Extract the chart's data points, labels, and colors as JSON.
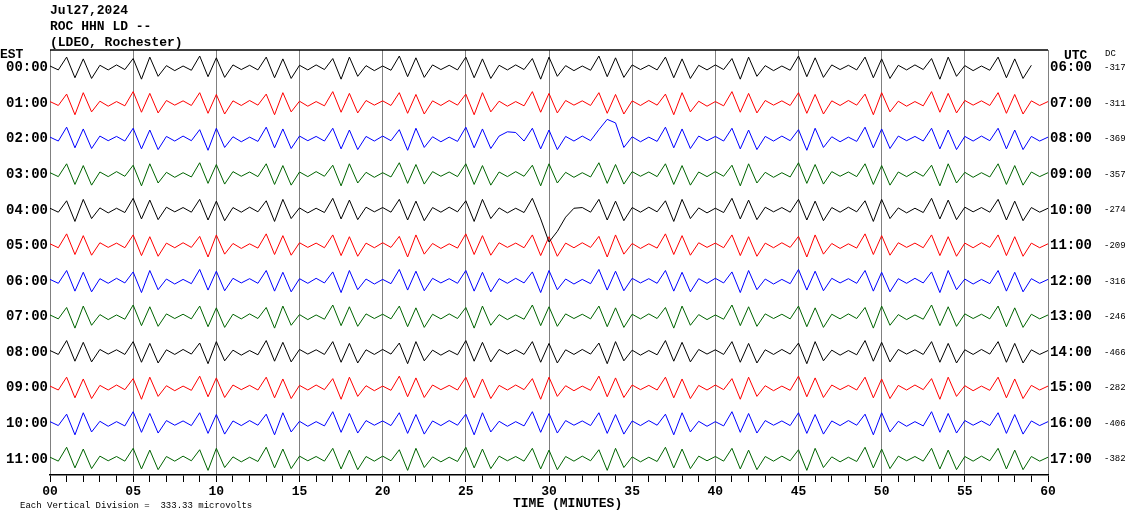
{
  "chart_data": {
    "type": "line",
    "title": "Jul27,2024",
    "subtitle": "ROC HHN LD --",
    "annotations": [
      "(LDEO, Rochester)",
      "Each Vertical Division =  333.33 microvolts",
      "DC",
      "-317",
      "-311",
      "-369",
      "-357",
      "-274",
      "-209",
      "-316",
      "-246",
      "-466",
      "-282",
      "-406",
      "-382"
    ],
    "xlabel": "TIME (MINUTES)",
    "ylabel": "EST",
    "y2label": "UTC",
    "xlim": [
      0,
      60
    ],
    "xticks": [
      {
        "value": 0,
        "label": "00"
      },
      {
        "value": 1,
        "label": null
      },
      {
        "value": 2,
        "label": null
      },
      {
        "value": 3,
        "label": null
      },
      {
        "value": 4,
        "label": null
      },
      {
        "value": 5,
        "label": "05"
      },
      {
        "value": 6,
        "label": null
      },
      {
        "value": 7,
        "label": null
      },
      {
        "value": 8,
        "label": null
      },
      {
        "value": 9,
        "label": null
      },
      {
        "value": 10,
        "label": "10"
      },
      {
        "value": 11,
        "label": null
      },
      {
        "value": 12,
        "label": null
      },
      {
        "value": 13,
        "label": null
      },
      {
        "value": 14,
        "label": null
      },
      {
        "value": 15,
        "label": "15"
      },
      {
        "value": 16,
        "label": null
      },
      {
        "value": 17,
        "label": null
      },
      {
        "value": 18,
        "label": null
      },
      {
        "value": 19,
        "label": null
      },
      {
        "value": 20,
        "label": "20"
      },
      {
        "value": 21,
        "label": null
      },
      {
        "value": 22,
        "label": null
      },
      {
        "value": 23,
        "label": null
      },
      {
        "value": 24,
        "label": null
      },
      {
        "value": 25,
        "label": "25"
      },
      {
        "value": 26,
        "label": null
      },
      {
        "value": 27,
        "label": null
      },
      {
        "value": 28,
        "label": null
      },
      {
        "value": 29,
        "label": null
      },
      {
        "value": 30,
        "label": "30"
      },
      {
        "value": 31,
        "label": null
      },
      {
        "value": 32,
        "label": null
      },
      {
        "value": 33,
        "label": null
      },
      {
        "value": 34,
        "label": null
      },
      {
        "value": 35,
        "label": "35"
      },
      {
        "value": 36,
        "label": null
      },
      {
        "value": 37,
        "label": null
      },
      {
        "value": 38,
        "label": null
      },
      {
        "value": 39,
        "label": null
      },
      {
        "value": 40,
        "label": "40"
      },
      {
        "value": 41,
        "label": null
      },
      {
        "value": 42,
        "label": null
      },
      {
        "value": 43,
        "label": null
      },
      {
        "value": 44,
        "label": null
      },
      {
        "value": 45,
        "label": "45"
      },
      {
        "value": 46,
        "label": null
      },
      {
        "value": 47,
        "label": null
      },
      {
        "value": 48,
        "label": null
      },
      {
        "value": 49,
        "label": null
      },
      {
        "value": 50,
        "label": "50"
      },
      {
        "value": 51,
        "label": null
      },
      {
        "value": 52,
        "label": null
      },
      {
        "value": 53,
        "label": null
      },
      {
        "value": 54,
        "label": null
      },
      {
        "value": 55,
        "label": "55"
      },
      {
        "value": 56,
        "label": null
      },
      {
        "value": 57,
        "label": null
      },
      {
        "value": 58,
        "label": null
      },
      {
        "value": 59,
        "label": null
      },
      {
        "value": 60,
        "label": "60"
      }
    ],
    "ylim": [
      11.45,
      -0.5
    ],
    "yticks": [
      {
        "value": 0,
        "label": "00:00"
      },
      {
        "value": 1,
        "label": "01:00"
      },
      {
        "value": 2,
        "label": "02:00"
      },
      {
        "value": 3,
        "label": "03:00"
      },
      {
        "value": 4,
        "label": "04:00"
      },
      {
        "value": 5,
        "label": "05:00"
      },
      {
        "value": 6,
        "label": "06:00"
      },
      {
        "value": 7,
        "label": "07:00"
      },
      {
        "value": 8,
        "label": "08:00"
      },
      {
        "value": 9,
        "label": "09:00"
      },
      {
        "value": 10,
        "label": "10:00"
      },
      {
        "value": 11,
        "label": "11:00"
      }
    ],
    "y2lim": [
      17.45,
      5.5
    ],
    "y2ticks": [
      {
        "value": 6,
        "label": "06:00"
      },
      {
        "value": 7,
        "label": "07:00"
      },
      {
        "value": 8,
        "label": "08:00"
      },
      {
        "value": 9,
        "label": "09:00"
      },
      {
        "value": 10,
        "label": "10:00"
      },
      {
        "value": 11,
        "label": "11:00"
      },
      {
        "value": 12,
        "label": "12:00"
      },
      {
        "value": 13,
        "label": "13:00"
      },
      {
        "value": 14,
        "label": "14:00"
      },
      {
        "value": 15,
        "label": "15:00"
      },
      {
        "value": 16,
        "label": "16:00"
      },
      {
        "value": 17,
        "label": "17:00"
      }
    ],
    "grid": "x",
    "marker": "none",
    "line_style": "solid",
    "x": [
      0,
      0.5,
      1,
      1.5,
      2,
      2.5,
      3,
      3.5,
      4,
      4.5,
      5,
      5.5,
      6,
      6.5,
      7,
      7.5,
      8,
      8.5,
      9,
      9.5,
      10,
      10.5,
      11,
      11.5,
      12,
      12.5,
      13,
      13.5,
      14,
      14.5,
      15,
      15.5,
      16,
      16.5,
      17,
      17.5,
      18,
      18.5,
      19,
      19.5,
      20,
      20.5,
      21,
      21.5,
      22,
      22.5,
      23,
      23.5,
      24,
      24.5,
      25,
      25.5,
      26,
      26.5,
      27,
      27.5,
      28,
      28.5,
      29,
      29.5,
      30,
      30.5,
      31,
      31.5,
      32,
      32.5,
      33,
      33.5,
      34,
      34.5,
      35,
      35.5,
      36,
      36.5,
      37,
      37.5,
      38,
      38.5,
      39,
      39.5,
      40,
      40.5,
      41,
      41.5,
      42,
      42.5,
      43,
      43.5,
      44,
      44.5,
      45,
      45.5,
      46,
      46.5,
      47,
      47.5,
      48,
      48.5,
      49,
      49.5,
      50,
      50.5,
      51,
      51.5,
      52,
      52.5,
      53,
      53.5,
      54,
      54.5,
      55,
      55.5,
      56,
      56.5,
      57,
      57.5,
      58,
      58.5,
      59,
      59.5,
      60
    ],
    "series": [
      {
        "color": "#000000",
        "values": [
          -0.05,
          0.06,
          -0.3,
          0.28,
          -0.25,
          0.3,
          -0.07,
          0.06,
          -0.08,
          0.05,
          -0.26,
          0.32,
          -0.3,
          0.24,
          -0.06,
          0.08,
          -0.05,
          0.07,
          -0.33,
          0.25,
          -0.28,
          0.27,
          -0.08,
          0.05,
          -0.07,
          0.06,
          -0.3,
          0.28,
          -0.25,
          0.3,
          -0.07,
          0.06,
          -0.08,
          0.05,
          -0.26,
          0.32,
          -0.3,
          0.24,
          -0.06,
          0.08,
          -0.05,
          0.07,
          -0.33,
          0.25,
          -0.28,
          0.27,
          -0.08,
          0.05,
          -0.07,
          0.06,
          -0.3,
          0.28,
          -0.25,
          0.3,
          -0.07,
          0.06,
          -0.08,
          0.05,
          -0.26,
          0.32,
          -0.3,
          0.24,
          -0.06,
          0.08,
          -0.05,
          0.07,
          -0.33,
          0.25,
          -0.28,
          0.27,
          -0.08,
          0.05,
          -0.07,
          0.06,
          -0.3,
          0.28,
          -0.25,
          0.3,
          -0.07,
          0.06,
          -0.08,
          0.05,
          -0.26,
          0.32,
          -0.3,
          0.24,
          -0.06,
          0.08,
          -0.05,
          0.07,
          -0.33,
          0.25,
          -0.28,
          0.27,
          -0.08,
          0.05,
          -0.07,
          0.06,
          -0.3,
          0.28,
          -0.25,
          0.3,
          -0.07,
          0.06,
          -0.08,
          0.05,
          -0.26,
          0.32,
          -0.3,
          0.24,
          -0.06,
          0.08,
          -0.05,
          0.07,
          -0.3,
          0.28,
          -0.25,
          0.3,
          -0.07,
          null,
          null
        ]
      },
      {
        "color": "#ff0000",
        "values": [
          0.95,
          1.06,
          0.74,
          1.32,
          0.7,
          1.24,
          0.94,
          1.08,
          0.95,
          1.07,
          0.67,
          1.25,
          0.72,
          1.27,
          0.92,
          1.05,
          0.93,
          1.06,
          0.7,
          1.28,
          0.75,
          1.3,
          0.93,
          1.06,
          0.92,
          1.05,
          0.74,
          1.32,
          0.7,
          1.24,
          0.94,
          1.08,
          0.95,
          1.07,
          0.67,
          1.25,
          0.72,
          1.27,
          0.92,
          1.05,
          0.93,
          1.06,
          0.7,
          1.28,
          0.75,
          1.3,
          0.93,
          1.06,
          0.92,
          1.05,
          0.74,
          1.32,
          0.7,
          1.24,
          0.94,
          1.08,
          0.95,
          1.07,
          0.67,
          1.25,
          0.72,
          1.27,
          0.92,
          1.05,
          0.93,
          1.06,
          0.7,
          1.28,
          0.75,
          1.3,
          0.93,
          1.06,
          0.92,
          1.05,
          0.74,
          1.32,
          0.7,
          1.24,
          0.94,
          1.08,
          0.95,
          1.07,
          0.67,
          1.25,
          0.72,
          1.27,
          0.92,
          1.05,
          0.93,
          1.06,
          0.7,
          1.28,
          0.75,
          1.3,
          0.93,
          1.06,
          0.92,
          1.05,
          0.74,
          1.32,
          0.7,
          1.24,
          0.94,
          1.08,
          0.95,
          1.07,
          0.67,
          1.25,
          0.72,
          1.27,
          0.92,
          1.05,
          0.93,
          1.06,
          0.7,
          1.28,
          0.75,
          1.3,
          0.93,
          1.06,
          0.95
        ]
      },
      {
        "color": "#0000ff",
        "values": [
          1.95,
          2.06,
          1.67,
          2.25,
          1.72,
          2.27,
          1.92,
          2.05,
          1.93,
          2.06,
          1.7,
          2.28,
          1.75,
          2.3,
          1.93,
          2.06,
          1.92,
          2.05,
          1.74,
          2.32,
          1.7,
          2.24,
          1.94,
          2.08,
          1.95,
          2.07,
          1.67,
          2.25,
          1.72,
          2.27,
          1.92,
          2.05,
          1.93,
          2.06,
          1.7,
          2.28,
          1.75,
          2.3,
          1.93,
          2.06,
          1.92,
          2.05,
          1.74,
          2.32,
          1.7,
          2.24,
          1.94,
          2.08,
          1.95,
          2.07,
          1.67,
          2.25,
          1.72,
          2.27,
          1.92,
          1.8,
          1.82,
          2.06,
          1.7,
          2.28,
          1.75,
          2.3,
          1.93,
          2.06,
          1.92,
          2.05,
          1.74,
          1.45,
          1.55,
          2.24,
          1.94,
          2.08,
          1.95,
          2.07,
          1.67,
          2.25,
          1.72,
          2.27,
          1.92,
          2.05,
          1.93,
          2.06,
          1.7,
          2.28,
          1.75,
          2.3,
          1.93,
          2.06,
          1.92,
          2.05,
          1.74,
          2.32,
          1.7,
          2.24,
          1.94,
          2.08,
          1.95,
          2.07,
          1.67,
          2.25,
          1.72,
          2.27,
          1.92,
          2.05,
          1.93,
          2.06,
          1.7,
          2.28,
          1.75,
          2.3,
          1.93,
          2.06,
          1.92,
          2.05,
          1.7,
          2.28,
          1.75,
          2.3,
          1.93,
          2.06,
          1.95
        ]
      },
      {
        "color": "#006400",
        "values": [
          2.95,
          3.06,
          2.7,
          3.28,
          2.75,
          3.3,
          2.93,
          3.06,
          2.92,
          3.05,
          2.74,
          3.32,
          2.7,
          3.24,
          2.94,
          3.08,
          2.95,
          3.07,
          2.67,
          3.25,
          2.72,
          3.27,
          2.92,
          3.05,
          2.93,
          3.06,
          2.7,
          3.28,
          2.75,
          3.3,
          2.93,
          3.06,
          2.92,
          3.05,
          2.74,
          3.32,
          2.7,
          3.24,
          2.94,
          3.08,
          2.95,
          3.07,
          2.67,
          3.25,
          2.72,
          3.27,
          2.92,
          3.05,
          2.93,
          3.06,
          2.7,
          3.28,
          2.75,
          3.3,
          2.93,
          3.06,
          2.92,
          3.05,
          2.74,
          3.32,
          2.7,
          3.24,
          2.94,
          3.08,
          2.95,
          3.07,
          2.67,
          3.25,
          2.72,
          3.27,
          2.92,
          3.05,
          2.93,
          3.06,
          2.7,
          3.28,
          2.75,
          3.3,
          2.93,
          3.06,
          2.92,
          3.05,
          2.74,
          3.32,
          2.7,
          3.24,
          2.94,
          3.08,
          2.95,
          3.07,
          2.67,
          3.25,
          2.72,
          3.27,
          2.92,
          3.05,
          2.93,
          3.06,
          2.7,
          3.28,
          2.75,
          3.3,
          2.93,
          3.06,
          2.92,
          3.05,
          2.74,
          3.32,
          2.7,
          3.24,
          2.94,
          3.08,
          2.95,
          3.07,
          2.7,
          3.28,
          2.75,
          3.3,
          2.93,
          3.06,
          2.95
        ]
      },
      {
        "color": "#000000",
        "values": [
          3.95,
          4.06,
          3.74,
          4.32,
          3.7,
          4.24,
          3.94,
          4.08,
          3.95,
          4.07,
          3.67,
          4.25,
          3.72,
          4.27,
          3.92,
          4.05,
          3.93,
          4.06,
          3.7,
          4.28,
          3.75,
          4.3,
          3.93,
          4.06,
          3.92,
          4.05,
          3.74,
          4.32,
          3.7,
          4.24,
          3.94,
          4.08,
          3.95,
          4.07,
          3.67,
          4.25,
          3.72,
          4.27,
          3.92,
          4.05,
          3.93,
          4.06,
          3.7,
          4.28,
          3.75,
          4.3,
          3.93,
          4.06,
          3.92,
          4.05,
          3.74,
          4.32,
          3.7,
          4.24,
          3.94,
          4.08,
          3.95,
          4.07,
          3.67,
          4.25,
          4.9,
          4.6,
          4.2,
          3.95,
          3.93,
          4.06,
          3.7,
          4.28,
          3.75,
          4.3,
          3.93,
          4.06,
          3.92,
          4.05,
          3.74,
          4.32,
          3.7,
          4.24,
          3.94,
          4.08,
          3.95,
          4.07,
          3.67,
          4.25,
          3.72,
          4.27,
          3.92,
          4.05,
          3.93,
          4.06,
          3.7,
          4.28,
          3.75,
          4.3,
          3.93,
          4.06,
          3.92,
          4.05,
          3.74,
          4.32,
          3.7,
          4.24,
          3.94,
          4.08,
          3.95,
          4.07,
          3.67,
          4.25,
          3.72,
          4.27,
          3.92,
          4.05,
          3.93,
          4.06,
          3.7,
          4.28,
          3.75,
          4.3,
          3.93,
          4.06,
          3.95
        ]
      },
      {
        "color": "#ff0000",
        "values": [
          4.95,
          5.06,
          4.67,
          5.25,
          4.72,
          5.27,
          4.92,
          5.05,
          4.93,
          5.06,
          4.7,
          5.28,
          4.75,
          5.3,
          4.93,
          5.06,
          4.92,
          5.05,
          4.74,
          5.32,
          4.7,
          5.24,
          4.94,
          5.08,
          4.95,
          5.07,
          4.67,
          5.25,
          4.72,
          5.27,
          4.92,
          5.05,
          4.93,
          5.06,
          4.7,
          5.28,
          4.75,
          5.3,
          4.93,
          5.06,
          4.92,
          5.05,
          4.74,
          5.32,
          4.7,
          5.24,
          4.94,
          5.08,
          4.95,
          5.07,
          4.67,
          5.25,
          4.72,
          5.27,
          4.92,
          5.05,
          4.93,
          5.06,
          4.7,
          5.28,
          4.75,
          5.3,
          4.93,
          5.06,
          4.92,
          5.05,
          4.74,
          5.32,
          4.7,
          5.24,
          4.94,
          5.08,
          4.95,
          5.07,
          4.67,
          5.25,
          4.72,
          5.27,
          4.92,
          5.05,
          4.93,
          5.06,
          4.7,
          5.28,
          4.75,
          5.3,
          4.93,
          5.06,
          4.92,
          5.05,
          4.74,
          5.32,
          4.7,
          5.24,
          4.94,
          5.08,
          4.95,
          5.07,
          4.67,
          5.25,
          4.72,
          5.27,
          4.92,
          5.05,
          4.93,
          5.06,
          4.7,
          5.28,
          4.75,
          5.3,
          4.93,
          5.06,
          4.92,
          5.05,
          4.7,
          5.28,
          4.75,
          5.3,
          4.93,
          5.06,
          4.95
        ]
      },
      {
        "color": "#0000ff",
        "values": [
          5.95,
          6.06,
          5.7,
          6.28,
          5.75,
          6.3,
          5.93,
          6.06,
          5.92,
          6.05,
          5.74,
          6.32,
          5.7,
          6.24,
          5.94,
          6.08,
          5.95,
          6.07,
          5.67,
          6.25,
          5.72,
          6.27,
          5.92,
          6.05,
          5.93,
          6.06,
          5.7,
          6.28,
          5.75,
          6.3,
          5.93,
          6.06,
          5.92,
          6.05,
          5.74,
          6.32,
          5.7,
          6.24,
          5.94,
          6.08,
          5.95,
          6.07,
          5.67,
          6.25,
          5.72,
          6.27,
          5.92,
          6.05,
          5.93,
          6.06,
          5.7,
          6.28,
          5.75,
          6.3,
          5.93,
          6.06,
          5.92,
          6.05,
          5.74,
          6.32,
          5.7,
          6.24,
          5.94,
          6.08,
          5.95,
          6.07,
          5.67,
          6.25,
          5.72,
          6.27,
          5.92,
          6.05,
          5.93,
          6.06,
          5.7,
          6.28,
          5.75,
          6.3,
          5.93,
          6.06,
          5.92,
          6.05,
          5.74,
          6.32,
          5.7,
          6.24,
          5.94,
          6.08,
          5.95,
          6.07,
          5.67,
          6.25,
          5.72,
          6.27,
          5.92,
          6.05,
          5.93,
          6.06,
          5.7,
          6.28,
          5.75,
          6.3,
          5.93,
          6.06,
          5.92,
          6.05,
          5.74,
          6.32,
          5.7,
          6.24,
          5.94,
          6.08,
          5.95,
          6.07,
          5.7,
          6.28,
          5.75,
          6.3,
          5.93,
          6.06,
          5.95
        ]
      },
      {
        "color": "#006400",
        "values": [
          6.95,
          7.06,
          6.74,
          7.32,
          6.7,
          7.24,
          6.94,
          7.08,
          6.95,
          7.07,
          6.67,
          7.25,
          6.72,
          7.27,
          6.92,
          7.05,
          6.93,
          7.06,
          6.7,
          7.28,
          6.75,
          7.3,
          6.93,
          7.06,
          6.92,
          7.05,
          6.74,
          7.32,
          6.7,
          7.24,
          6.94,
          7.08,
          6.95,
          7.07,
          6.67,
          7.25,
          6.72,
          7.27,
          6.92,
          7.05,
          6.93,
          7.06,
          6.7,
          7.28,
          6.75,
          7.3,
          6.93,
          7.06,
          6.92,
          7.05,
          6.74,
          7.32,
          6.7,
          7.24,
          6.94,
          7.08,
          6.95,
          7.07,
          6.67,
          7.25,
          6.72,
          7.27,
          6.92,
          7.05,
          6.93,
          7.06,
          6.7,
          7.28,
          6.75,
          7.3,
          6.93,
          7.06,
          6.92,
          7.05,
          6.74,
          7.32,
          6.7,
          7.24,
          6.94,
          7.08,
          6.95,
          7.07,
          6.67,
          7.25,
          6.72,
          7.27,
          6.92,
          7.05,
          6.93,
          7.06,
          6.7,
          7.28,
          6.75,
          7.3,
          6.93,
          7.06,
          6.92,
          7.05,
          6.74,
          7.32,
          6.7,
          7.24,
          6.94,
          7.08,
          6.95,
          7.07,
          6.67,
          7.25,
          6.72,
          7.27,
          6.92,
          7.05,
          6.93,
          7.06,
          6.7,
          7.28,
          6.75,
          7.3,
          6.93,
          7.06,
          6.95
        ]
      },
      {
        "color": "#000000",
        "values": [
          7.95,
          8.06,
          7.67,
          8.25,
          7.72,
          8.27,
          7.92,
          8.05,
          7.93,
          8.06,
          7.7,
          8.28,
          7.75,
          8.3,
          7.93,
          8.06,
          7.92,
          8.05,
          7.74,
          8.32,
          7.7,
          8.24,
          7.94,
          8.08,
          7.95,
          8.07,
          7.67,
          8.25,
          7.72,
          8.27,
          7.92,
          8.05,
          7.93,
          8.06,
          7.7,
          8.28,
          7.75,
          8.3,
          7.93,
          8.06,
          7.92,
          8.05,
          7.74,
          8.32,
          7.7,
          8.24,
          7.94,
          8.08,
          7.95,
          8.07,
          7.67,
          8.25,
          7.72,
          8.27,
          7.92,
          8.05,
          7.93,
          8.06,
          7.7,
          8.28,
          7.75,
          8.3,
          7.93,
          8.06,
          7.92,
          8.05,
          7.74,
          8.32,
          7.7,
          8.24,
          7.94,
          8.08,
          7.95,
          8.07,
          7.67,
          8.25,
          7.72,
          8.27,
          7.92,
          8.05,
          7.93,
          8.06,
          7.7,
          8.28,
          7.75,
          8.3,
          7.93,
          8.06,
          7.92,
          8.05,
          7.74,
          8.32,
          7.7,
          8.24,
          7.94,
          8.08,
          7.95,
          8.07,
          7.67,
          8.25,
          7.72,
          8.27,
          7.92,
          8.05,
          7.93,
          8.06,
          7.7,
          8.28,
          7.75,
          8.3,
          7.93,
          8.06,
          7.92,
          8.05,
          7.7,
          8.28,
          7.75,
          8.3,
          7.93,
          8.06,
          7.95
        ]
      },
      {
        "color": "#ff0000",
        "values": [
          8.95,
          9.06,
          8.7,
          9.28,
          8.75,
          9.3,
          8.93,
          9.06,
          8.92,
          9.05,
          8.74,
          9.32,
          8.7,
          9.24,
          8.94,
          9.08,
          8.95,
          9.07,
          8.67,
          9.25,
          8.72,
          9.27,
          8.92,
          9.05,
          8.93,
          9.06,
          8.7,
          9.28,
          8.75,
          9.3,
          8.93,
          9.06,
          8.92,
          9.05,
          8.74,
          9.32,
          8.7,
          9.24,
          8.94,
          9.08,
          8.95,
          9.07,
          8.67,
          9.25,
          8.72,
          9.27,
          8.92,
          9.05,
          8.93,
          9.06,
          8.7,
          9.28,
          8.75,
          9.3,
          8.93,
          9.06,
          8.92,
          9.05,
          8.74,
          9.32,
          8.7,
          9.24,
          8.94,
          9.08,
          8.95,
          9.07,
          8.67,
          9.25,
          8.72,
          9.27,
          8.92,
          9.05,
          8.93,
          9.06,
          8.7,
          9.28,
          8.75,
          9.3,
          8.93,
          9.06,
          8.92,
          9.05,
          8.74,
          9.32,
          8.7,
          9.24,
          8.94,
          9.08,
          8.95,
          9.07,
          8.67,
          9.25,
          8.72,
          9.27,
          8.92,
          9.05,
          8.93,
          9.06,
          8.7,
          9.28,
          8.75,
          9.3,
          8.93,
          9.06,
          8.92,
          9.05,
          8.74,
          9.32,
          8.7,
          9.24,
          8.94,
          9.08,
          8.95,
          9.07,
          8.7,
          9.28,
          8.75,
          9.3,
          8.93,
          9.06,
          8.95
        ]
      },
      {
        "color": "#0000ff",
        "values": [
          9.95,
          10.06,
          9.74,
          10.32,
          9.7,
          10.24,
          9.94,
          10.08,
          9.95,
          10.07,
          9.67,
          10.25,
          9.72,
          10.27,
          9.92,
          10.05,
          9.93,
          10.06,
          9.7,
          10.28,
          9.75,
          10.3,
          9.93,
          10.06,
          9.92,
          10.05,
          9.74,
          10.32,
          9.7,
          10.24,
          9.94,
          10.08,
          9.95,
          10.07,
          9.67,
          10.25,
          9.72,
          10.27,
          9.92,
          10.05,
          9.93,
          10.06,
          9.7,
          10.28,
          9.75,
          10.3,
          9.93,
          10.06,
          9.92,
          10.05,
          9.74,
          10.32,
          9.7,
          10.24,
          9.94,
          10.08,
          9.95,
          10.07,
          9.67,
          10.25,
          9.72,
          10.27,
          9.92,
          10.05,
          9.93,
          10.06,
          9.7,
          10.28,
          9.75,
          10.3,
          9.93,
          10.06,
          9.92,
          10.05,
          9.74,
          10.32,
          9.7,
          10.24,
          9.94,
          10.08,
          9.95,
          10.07,
          9.67,
          10.25,
          9.72,
          10.27,
          9.92,
          10.05,
          9.93,
          10.06,
          9.7,
          10.28,
          9.75,
          10.3,
          9.93,
          10.06,
          9.92,
          10.05,
          9.74,
          10.32,
          9.7,
          10.24,
          9.94,
          10.08,
          9.95,
          10.07,
          9.67,
          10.25,
          9.72,
          10.27,
          9.92,
          10.05,
          9.93,
          10.06,
          9.7,
          10.28,
          9.75,
          10.3,
          9.93,
          10.06,
          9.95
        ]
      },
      {
        "color": "#006400",
        "values": [
          10.95,
          11.06,
          10.67,
          11.25,
          10.72,
          11.27,
          10.92,
          11.05,
          10.93,
          11.06,
          10.7,
          11.28,
          10.75,
          11.3,
          10.93,
          11.06,
          10.92,
          11.05,
          10.74,
          11.32,
          10.7,
          11.24,
          10.94,
          11.08,
          10.95,
          11.07,
          10.67,
          11.25,
          10.72,
          11.27,
          10.92,
          11.05,
          10.93,
          11.06,
          10.7,
          11.28,
          10.75,
          11.3,
          10.93,
          11.06,
          10.92,
          11.05,
          10.74,
          11.32,
          10.7,
          11.24,
          10.94,
          11.08,
          10.95,
          11.07,
          10.67,
          11.25,
          10.72,
          11.27,
          10.92,
          11.05,
          10.93,
          11.06,
          10.7,
          11.28,
          10.75,
          11.3,
          10.93,
          11.06,
          10.92,
          11.05,
          10.74,
          11.32,
          10.7,
          11.24,
          10.94,
          11.08,
          10.95,
          11.07,
          10.67,
          11.25,
          10.72,
          11.27,
          10.92,
          11.05,
          10.93,
          11.06,
          10.7,
          11.28,
          10.75,
          11.3,
          10.93,
          11.06,
          10.92,
          11.05,
          10.74,
          11.32,
          10.7,
          11.24,
          10.94,
          11.08,
          10.95,
          11.07,
          10.67,
          11.25,
          10.72,
          11.27,
          10.92,
          11.05,
          10.93,
          11.06,
          10.7,
          11.28,
          10.75,
          11.3,
          10.93,
          11.06,
          10.92,
          11.05,
          10.7,
          11.28,
          10.75,
          11.3,
          10.93,
          11.06,
          10.95
        ]
      }
    ]
  }
}
